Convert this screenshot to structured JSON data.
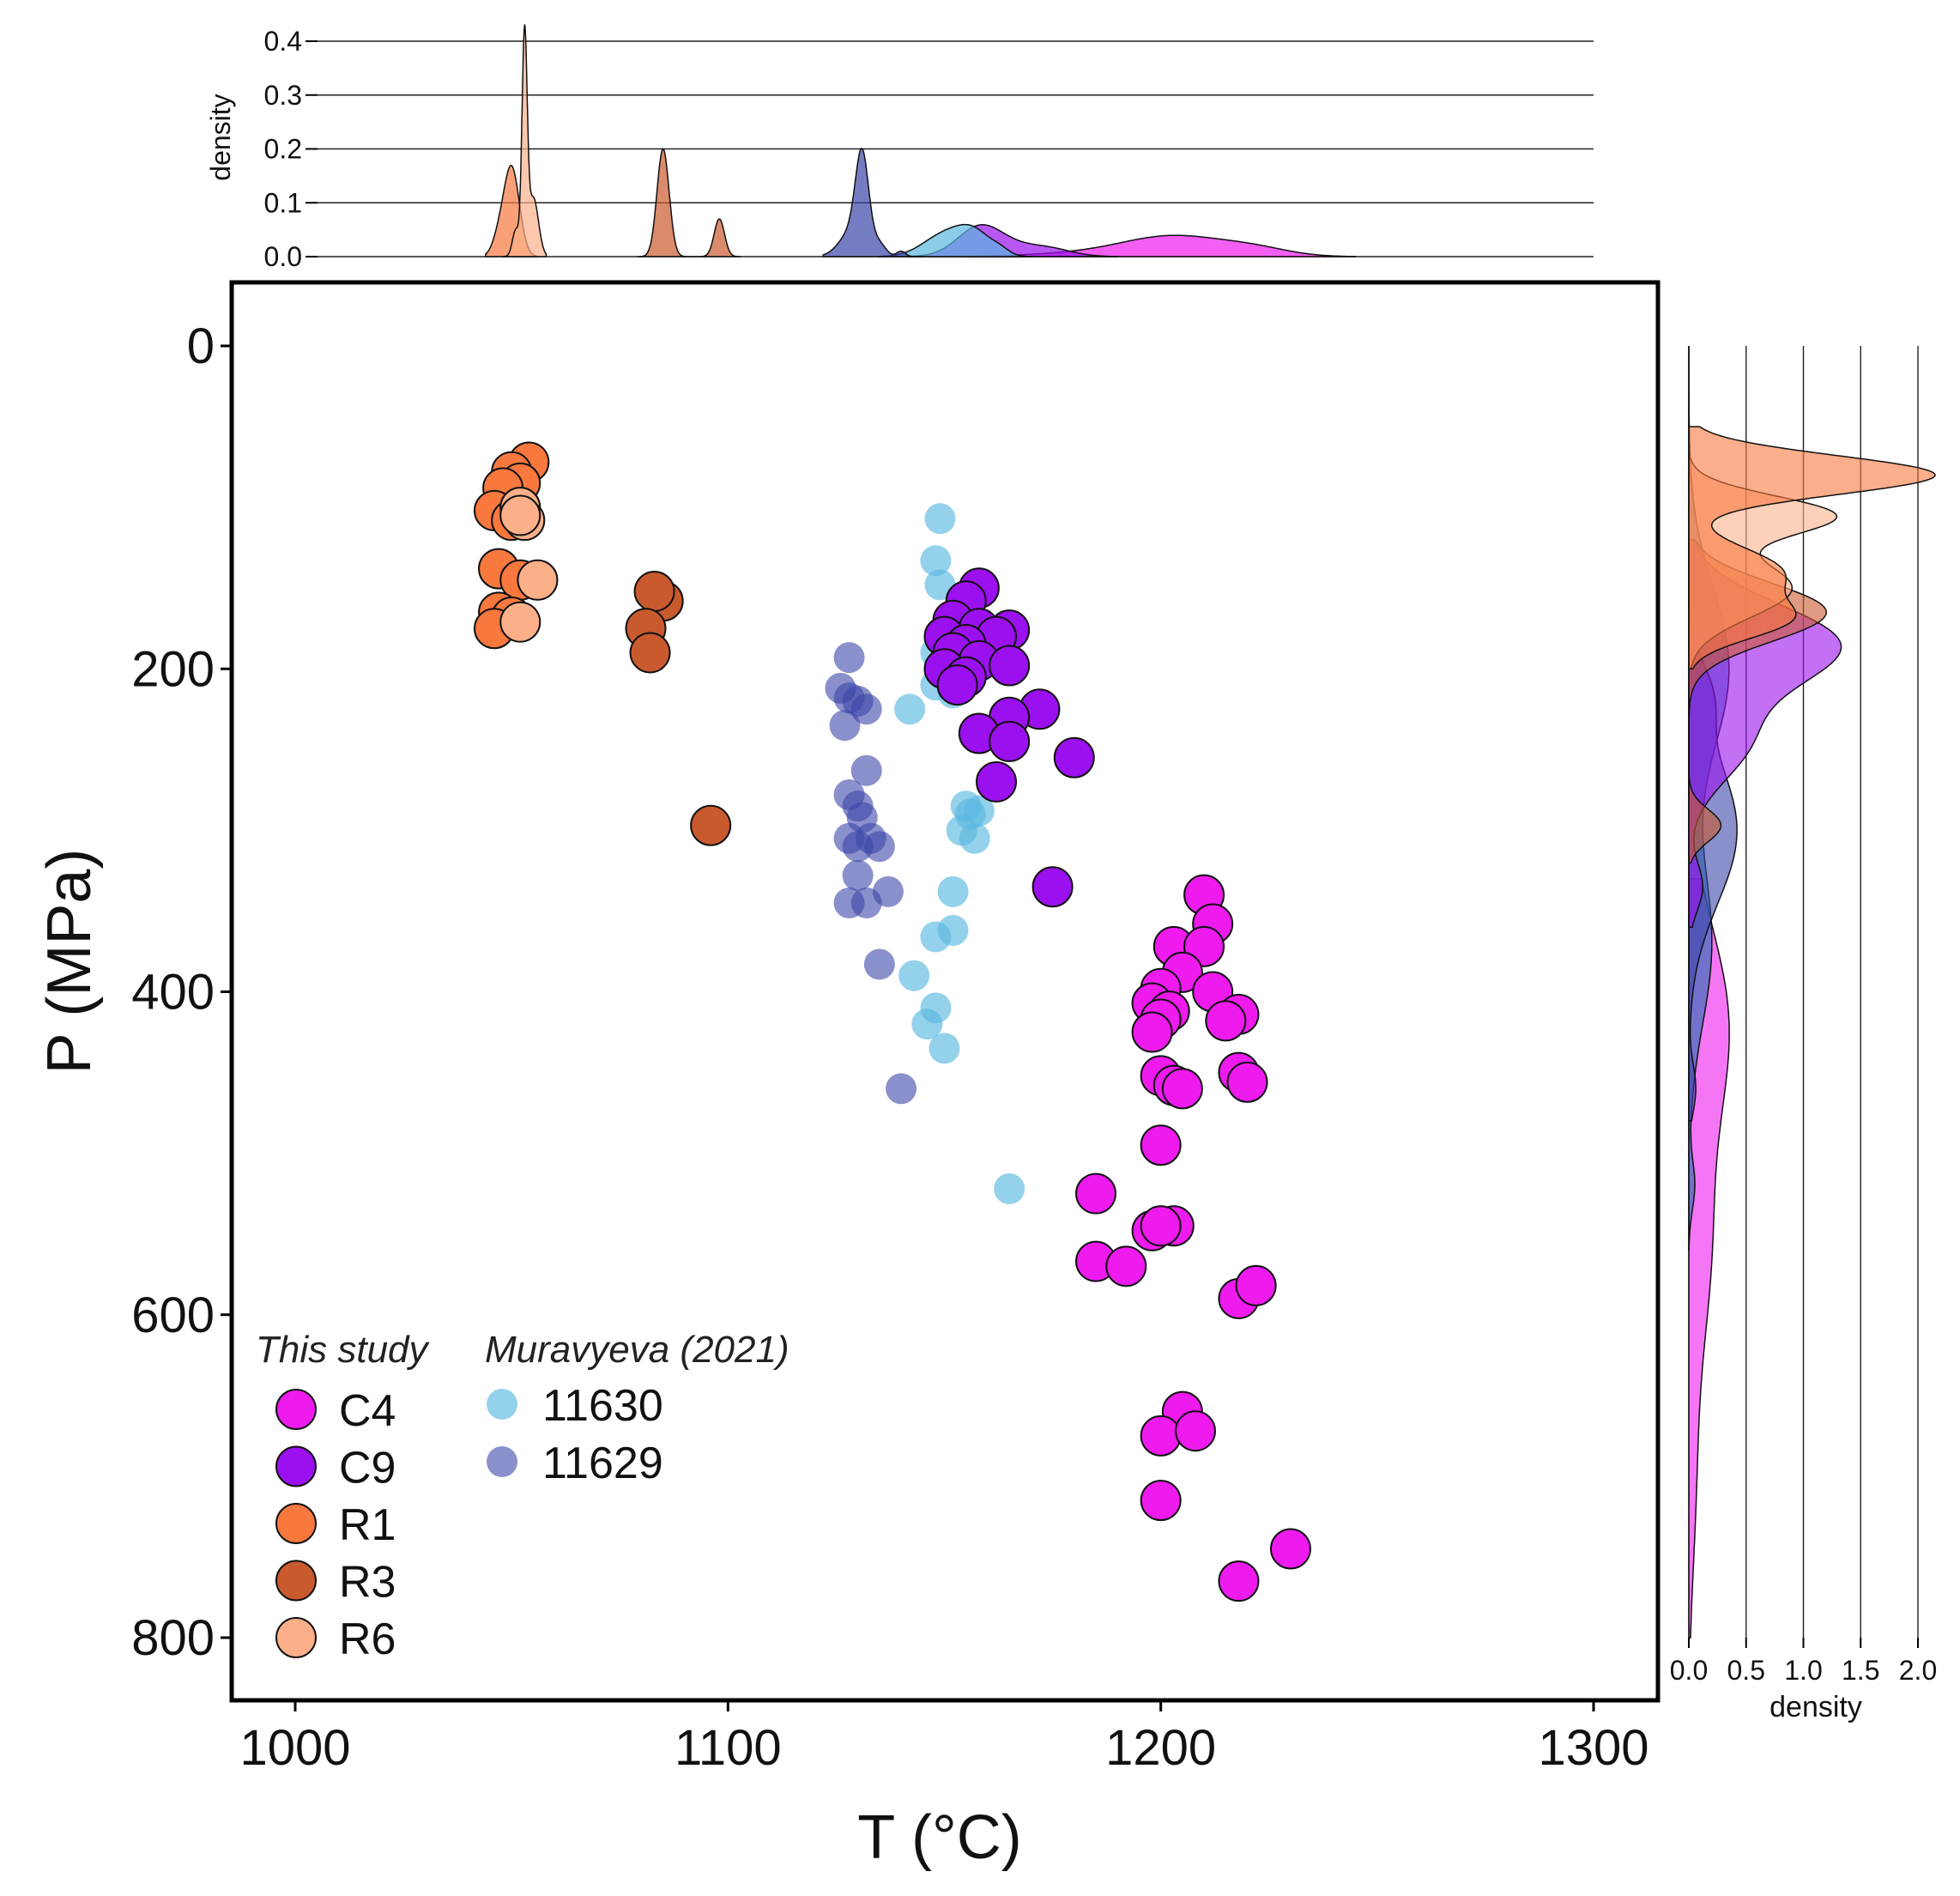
{
  "chart_data": {
    "type": "scatter",
    "xlabel": "T (°C)",
    "ylabel": "P (MPa)",
    "xlim": [
      985,
      1315
    ],
    "ylim": [
      835,
      -40
    ],
    "y_inverted": true,
    "xticks": [
      1000,
      1100,
      1200,
      1300
    ],
    "yticks": [
      0,
      200,
      400,
      600,
      800
    ],
    "legend": {
      "placement": "bottom-left",
      "group_titles": [
        "This study",
        "Muravyeva (2021)"
      ]
    },
    "series": [
      {
        "name": "C4",
        "group": "This study",
        "color": "#ee1aee",
        "opacity": 1,
        "outlined": true,
        "size": "large",
        "points": [
          [
            1210,
            340
          ],
          [
            1212,
            358
          ],
          [
            1203,
            372
          ],
          [
            1210,
            372
          ],
          [
            1205,
            388
          ],
          [
            1200,
            398
          ],
          [
            1212,
            400
          ],
          [
            1198,
            407
          ],
          [
            1202,
            412
          ],
          [
            1200,
            417
          ],
          [
            1218,
            414
          ],
          [
            1215,
            418
          ],
          [
            1198,
            425
          ],
          [
            1200,
            452
          ],
          [
            1203,
            458
          ],
          [
            1218,
            450
          ],
          [
            1220,
            456
          ],
          [
            1205,
            460
          ],
          [
            1200,
            495
          ],
          [
            1185,
            525
          ],
          [
            1203,
            545
          ],
          [
            1198,
            548
          ],
          [
            1200,
            545
          ],
          [
            1185,
            567
          ],
          [
            1192,
            570
          ],
          [
            1218,
            590
          ],
          [
            1222,
            582
          ],
          [
            1205,
            660
          ],
          [
            1200,
            675
          ],
          [
            1208,
            672
          ],
          [
            1200,
            715
          ],
          [
            1230,
            745
          ],
          [
            1218,
            765
          ]
        ]
      },
      {
        "name": "C9",
        "group": "This study",
        "color": "#9b10ee",
        "opacity": 1,
        "outlined": true,
        "size": "large",
        "points": [
          [
            1158,
            150
          ],
          [
            1155,
            158
          ],
          [
            1152,
            170
          ],
          [
            1158,
            175
          ],
          [
            1165,
            176
          ],
          [
            1150,
            180
          ],
          [
            1162,
            180
          ],
          [
            1155,
            185
          ],
          [
            1152,
            190
          ],
          [
            1158,
            195
          ],
          [
            1165,
            198
          ],
          [
            1150,
            200
          ],
          [
            1155,
            205
          ],
          [
            1153,
            210
          ],
          [
            1172,
            225
          ],
          [
            1165,
            230
          ],
          [
            1158,
            240
          ],
          [
            1165,
            245
          ],
          [
            1180,
            255
          ],
          [
            1162,
            270
          ],
          [
            1175,
            335
          ]
        ]
      },
      {
        "name": "R1",
        "group": "This study",
        "color": "#f8783e",
        "opacity": 1,
        "outlined": true,
        "size": "large",
        "points": [
          [
            1054,
            72
          ],
          [
            1050,
            78
          ],
          [
            1052,
            85
          ],
          [
            1048,
            88
          ],
          [
            1046,
            102
          ],
          [
            1050,
            108
          ],
          [
            1047,
            138
          ],
          [
            1052,
            145
          ],
          [
            1047,
            165
          ],
          [
            1050,
            168
          ],
          [
            1046,
            175
          ]
        ]
      },
      {
        "name": "R3",
        "group": "This study",
        "color": "#c95a2e",
        "opacity": 1,
        "outlined": true,
        "size": "large",
        "points": [
          [
            1085,
            158
          ],
          [
            1083,
            152
          ],
          [
            1081,
            175
          ],
          [
            1082,
            190
          ],
          [
            1096,
            297
          ]
        ]
      },
      {
        "name": "R6",
        "group": "This study",
        "color": "#fbb08a",
        "opacity": 1,
        "outlined": true,
        "size": "large",
        "points": [
          [
            1052,
            100
          ],
          [
            1053,
            108
          ],
          [
            1052,
            105
          ],
          [
            1056,
            145
          ],
          [
            1052,
            171
          ]
        ]
      },
      {
        "name": "11630",
        "group": "Muravyeva (2021)",
        "color": "#5ab8e0",
        "opacity": 0.65,
        "outlined": false,
        "size": "small",
        "points": [
          [
            1149,
            107
          ],
          [
            1148,
            133
          ],
          [
            1149,
            148
          ],
          [
            1152,
            172
          ],
          [
            1150,
            182
          ],
          [
            1148,
            190
          ],
          [
            1155,
            198
          ],
          [
            1152,
            205
          ],
          [
            1148,
            210
          ],
          [
            1152,
            215
          ],
          [
            1142,
            225
          ],
          [
            1155,
            285
          ],
          [
            1158,
            288
          ],
          [
            1156,
            290
          ],
          [
            1154,
            300
          ],
          [
            1157,
            305
          ],
          [
            1152,
            338
          ],
          [
            1152,
            362
          ],
          [
            1148,
            366
          ],
          [
            1143,
            390
          ],
          [
            1148,
            410
          ],
          [
            1146,
            420
          ],
          [
            1150,
            435
          ],
          [
            1165,
            522
          ]
        ]
      },
      {
        "name": "11629",
        "group": "Muravyeva (2021)",
        "color": "#3a46a8",
        "opacity": 0.6,
        "outlined": false,
        "size": "small",
        "points": [
          [
            1128,
            193
          ],
          [
            1126,
            212
          ],
          [
            1128,
            218
          ],
          [
            1130,
            220
          ],
          [
            1132,
            225
          ],
          [
            1127,
            235
          ],
          [
            1132,
            263
          ],
          [
            1128,
            278
          ],
          [
            1130,
            285
          ],
          [
            1131,
            292
          ],
          [
            1128,
            305
          ],
          [
            1133,
            305
          ],
          [
            1130,
            310
          ],
          [
            1135,
            310
          ],
          [
            1130,
            328
          ],
          [
            1137,
            338
          ],
          [
            1128,
            345
          ],
          [
            1132,
            345
          ],
          [
            1135,
            383
          ],
          [
            1140,
            460
          ]
        ]
      }
    ],
    "top_density": {
      "ylabel": "density",
      "yticks": [
        0.0,
        0.1,
        0.2,
        0.3,
        0.4
      ],
      "ylim": [
        0,
        0.42
      ],
      "series": [
        {
          "name": "C4",
          "color": "#ee1aee",
          "peaks": [
            [
              1203,
              0.038,
              12
            ],
            [
              1180,
              0.005,
              12
            ],
            [
              1222,
              0.012,
              8
            ]
          ],
          "range": [
            1155,
            1245
          ]
        },
        {
          "name": "C9",
          "color": "#9b10ee",
          "peaks": [
            [
              1158,
              0.045,
              5
            ],
            [
              1165,
              0.02,
              8
            ],
            [
              1175,
              0.008,
              5
            ]
          ],
          "range": [
            1142,
            1190
          ]
        },
        {
          "name": "11630",
          "color": "#5ab8e0",
          "peaks": [
            [
              1150,
              0.04,
              5
            ],
            [
              1157,
              0.04,
              4
            ],
            [
              1163,
              0.008,
              2
            ]
          ],
          "range": [
            1135,
            1170
          ]
        },
        {
          "name": "11629",
          "color": "#3a46a8",
          "peaks": [
            [
              1131,
              0.16,
              1.5
            ],
            [
              1129,
              0.05,
              3
            ],
            [
              1135,
              0.02,
              1.5
            ],
            [
              1140,
              0.01,
              1
            ]
          ],
          "range": [
            1122,
            1145
          ]
        },
        {
          "name": "R3",
          "color": "#c95a2e",
          "peaks": [
            [
              1085,
              0.2,
              1.4
            ],
            [
              1098,
              0.07,
              1.2
            ]
          ],
          "range": [
            1079,
            1103
          ]
        },
        {
          "name": "R1",
          "color": "#f8783e",
          "peaks": [
            [
              1050,
              0.165,
              1.8
            ],
            [
              1047,
              0.03,
              1.5
            ]
          ],
          "range": [
            1044,
            1056
          ]
        },
        {
          "name": "R6",
          "color": "#fbb08a",
          "peaks": [
            [
              1053,
              0.4,
              0.6
            ],
            [
              1055,
              0.11,
              1.2
            ],
            [
              1051,
              0.05,
              0.8
            ]
          ],
          "range": [
            1048,
            1058
          ]
        }
      ]
    },
    "right_density": {
      "xlabel": "density",
      "xticks": [
        0.0,
        0.5,
        1.0,
        1.5,
        2.0
      ],
      "xlim": [
        0,
        2.2
      ],
      "series": [
        {
          "name": "C4",
          "color": "#ee1aee",
          "peaks": [
            [
              420,
              0.34,
              60
            ],
            [
              560,
              0.18,
              60
            ],
            [
              700,
              0.06,
              60
            ]
          ],
          "range": [
            330,
            800
          ]
        },
        {
          "name": "11630",
          "color": "#1a6fb0",
          "peaks": [
            [
              200,
              0.35,
              50
            ],
            [
              370,
              0.2,
              50
            ],
            [
              520,
              0.05,
              15
            ]
          ],
          "range": [
            0,
            560
          ]
        },
        {
          "name": "11629",
          "color": "#3a46a8",
          "peaks": [
            [
              300,
              0.42,
              45
            ],
            [
              215,
              0.15,
              20
            ],
            [
              460,
              0.06,
              15
            ]
          ],
          "range": [
            0,
            480
          ]
        },
        {
          "name": "C9",
          "color": "#9b10ee",
          "peaks": [
            [
              185,
              1.3,
              25
            ],
            [
              245,
              0.5,
              25
            ],
            [
              335,
              0.12,
              15
            ]
          ],
          "range": [
            120,
            360
          ]
        },
        {
          "name": "R3",
          "color": "#c95a2e",
          "peaks": [
            [
              165,
              1.2,
              18
            ],
            [
              297,
              0.28,
              10
            ]
          ],
          "range": [
            120,
            320
          ]
        },
        {
          "name": "R6",
          "color": "#fbb08a",
          "peaks": [
            [
              105,
              1.25,
              12
            ],
            [
              150,
              0.9,
              18
            ]
          ],
          "range": [
            70,
            200
          ]
        },
        {
          "name": "R1",
          "color": "#f8783e",
          "peaks": [
            [
              80,
              2.15,
              12
            ],
            [
              140,
              0.8,
              15
            ],
            [
              170,
              0.8,
              12
            ]
          ],
          "range": [
            50,
            200
          ]
        }
      ]
    }
  }
}
